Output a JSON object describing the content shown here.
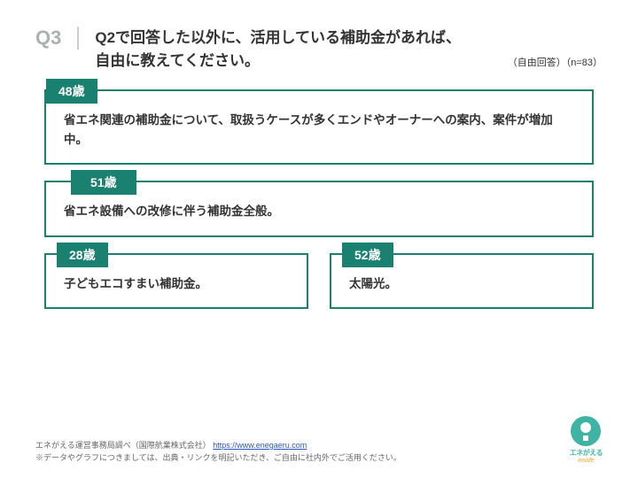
{
  "header": {
    "qlabel": "Q3",
    "qtext1": "Q2で回答した以外に、活用している補助金があれば、",
    "qtext2": "自由に教えてください。",
    "meta": "（自由回答）（n=83）"
  },
  "responses": {
    "a": {
      "tag": "48歳",
      "text": "省エネ関連の補助金について、取扱うケースが多くエンドやオーナーへの案内、案件が増加中。"
    },
    "b": {
      "tag": "51歳",
      "text": "省エネ設備への改修に伴う補助金全般。"
    },
    "c": {
      "tag": "28歳",
      "text": "子どもエコすまい補助金。"
    },
    "d": {
      "tag": "52歳",
      "text": "太陽光。"
    }
  },
  "footer": {
    "line1a": "エネがえる運営事務局調べ（国際航業株式会社）",
    "link": "https://www.enegaeru.com",
    "line2": "※データやグラフにつきましては、出典・リンクを明記いただき、ご自由に社内外でご活用ください。"
  },
  "logo": {
    "text": "エネがえる",
    "sub": "inside"
  },
  "colors": {
    "accent": "#1a8070",
    "qlabel": "#a8b2b0"
  }
}
